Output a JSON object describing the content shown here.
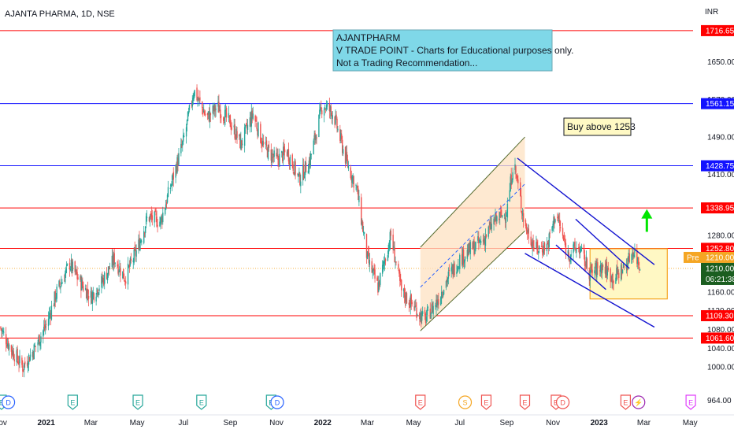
{
  "header": {
    "symbol_title": "AJANTA PHARMA, 1D, NSE",
    "currency": "INR"
  },
  "annotation": {
    "lines": [
      "AJANTPHARM",
      "V TRADE POINT - Charts for Educational purposes only.",
      "Not a Trading Recommendation..."
    ],
    "background": "#7fd8e8"
  },
  "buy_note": "Buy above 1253",
  "colors": {
    "up_candle": "#26a69a",
    "down_candle": "#ef5350",
    "red_level": "#ff0000",
    "blue_level": "#1212ff",
    "channel_fill": "#fde2c2",
    "consolidation_fill": "#fff8c4",
    "consolidation_border": "#f5a623",
    "arrow_green": "#00e600",
    "last_price": "#1b5e20"
  },
  "chart_data": {
    "type": "candlestick",
    "title": "AJANTA PHARMA, 1D, NSE",
    "y_unit": "INR",
    "ylim": [
      960,
      1740
    ],
    "x_range": [
      "2020-11-01",
      "2023-05-05"
    ],
    "y_ticks": [
      1000,
      1040,
      1080,
      1120,
      1160,
      1280,
      1410,
      1490,
      1570,
      1650
    ],
    "y_tick_labels": [
      "1000.00",
      "1040.00",
      "1080.00",
      "1120.00",
      "1160.00",
      "1280.00",
      "1410.00",
      "1490.00",
      "1570.00",
      "1650.00"
    ],
    "x_ticks": [
      {
        "date": "2020-11-01",
        "label": "Nov"
      },
      {
        "date": "2021-01-01",
        "label": "2021"
      },
      {
        "date": "2021-03-01",
        "label": "Mar"
      },
      {
        "date": "2021-05-01",
        "label": "May"
      },
      {
        "date": "2021-07-01",
        "label": "Jul"
      },
      {
        "date": "2021-09-01",
        "label": "Sep"
      },
      {
        "date": "2021-11-01",
        "label": "Nov"
      },
      {
        "date": "2022-01-01",
        "label": "2022"
      },
      {
        "date": "2022-03-01",
        "label": "Mar"
      },
      {
        "date": "2022-05-01",
        "label": "May"
      },
      {
        "date": "2022-07-01",
        "label": "Jul"
      },
      {
        "date": "2022-09-01",
        "label": "Sep"
      },
      {
        "date": "2022-11-01",
        "label": "Nov"
      },
      {
        "date": "2023-01-01",
        "label": "2023"
      },
      {
        "date": "2023-03-01",
        "label": "Mar"
      },
      {
        "date": "2023-05-01",
        "label": "May"
      }
    ],
    "horizontal_levels": [
      {
        "value": 1716.65,
        "label": "1716.65",
        "color": "red"
      },
      {
        "value": 1561.15,
        "label": "1561.15",
        "color": "blue"
      },
      {
        "value": 1428.75,
        "label": "1428.75",
        "color": "blue"
      },
      {
        "value": 1338.95,
        "label": "1338.95",
        "color": "red"
      },
      {
        "value": 1252.8,
        "label": "1252.80",
        "color": "red"
      },
      {
        "value": 1109.3,
        "label": "1109.30",
        "color": "red"
      },
      {
        "value": 1061.6,
        "label": "1061.60",
        "color": "red"
      }
    ],
    "last_price": {
      "value": 1210.0,
      "label": "1210.00",
      "countdown": "06:21:38"
    },
    "pre_market": {
      "tag": "Pre",
      "value": 1210.0,
      "label": "1210.00"
    },
    "bottom_price_label": "964.00",
    "price_path": [
      [
        "2020-11-01",
        1085
      ],
      [
        "2020-11-15",
        1040
      ],
      [
        "2020-12-01",
        1000
      ],
      [
        "2020-12-15",
        1035
      ],
      [
        "2021-01-01",
        1090
      ],
      [
        "2021-01-15",
        1160
      ],
      [
        "2021-02-01",
        1220
      ],
      [
        "2021-02-15",
        1180
      ],
      [
        "2021-03-01",
        1150
      ],
      [
        "2021-03-15",
        1180
      ],
      [
        "2021-04-01",
        1230
      ],
      [
        "2021-04-15",
        1190
      ],
      [
        "2021-05-01",
        1250
      ],
      [
        "2021-05-15",
        1320
      ],
      [
        "2021-06-01",
        1310
      ],
      [
        "2021-06-15",
        1390
      ],
      [
        "2021-07-01",
        1480
      ],
      [
        "2021-07-15",
        1590
      ],
      [
        "2021-08-01",
        1530
      ],
      [
        "2021-08-15",
        1555
      ],
      [
        "2021-09-01",
        1520
      ],
      [
        "2021-09-15",
        1475
      ],
      [
        "2021-10-01",
        1540
      ],
      [
        "2021-10-15",
        1470
      ],
      [
        "2021-11-01",
        1440
      ],
      [
        "2021-11-15",
        1460
      ],
      [
        "2021-12-01",
        1400
      ],
      [
        "2021-12-15",
        1440
      ],
      [
        "2022-01-01",
        1560
      ],
      [
        "2022-01-15",
        1540
      ],
      [
        "2022-02-01",
        1440
      ],
      [
        "2022-02-15",
        1380
      ],
      [
        "2022-03-01",
        1230
      ],
      [
        "2022-03-15",
        1170
      ],
      [
        "2022-04-01",
        1280
      ],
      [
        "2022-04-15",
        1160
      ],
      [
        "2022-05-01",
        1130
      ],
      [
        "2022-05-15",
        1100
      ],
      [
        "2022-06-01",
        1140
      ],
      [
        "2022-06-15",
        1190
      ],
      [
        "2022-07-01",
        1230
      ],
      [
        "2022-07-15",
        1250
      ],
      [
        "2022-08-01",
        1270
      ],
      [
        "2022-08-15",
        1310
      ],
      [
        "2022-09-01",
        1330
      ],
      [
        "2022-09-10",
        1440
      ],
      [
        "2022-09-25",
        1300
      ],
      [
        "2022-10-10",
        1250
      ],
      [
        "2022-10-25",
        1260
      ],
      [
        "2022-11-05",
        1330
      ],
      [
        "2022-11-20",
        1240
      ],
      [
        "2022-12-05",
        1255
      ],
      [
        "2022-12-20",
        1200
      ],
      [
        "2023-01-05",
        1215
      ],
      [
        "2023-01-20",
        1190
      ],
      [
        "2023-02-05",
        1215
      ],
      [
        "2023-02-15",
        1250
      ],
      [
        "2023-02-25",
        1210
      ]
    ],
    "channel_up": {
      "upper": [
        [
          "2022-05-10",
          1255
        ],
        [
          "2022-09-25",
          1490
        ]
      ],
      "lower": [
        [
          "2022-05-10",
          1077
        ],
        [
          "2022-09-25",
          1290
        ]
      ],
      "mid_dashed": [
        [
          "2022-05-10",
          1170
        ],
        [
          "2022-09-25",
          1390
        ]
      ]
    },
    "channel_down": {
      "upper": [
        [
          "2022-09-15",
          1445
        ],
        [
          "2023-03-15",
          1218
        ]
      ],
      "lower": [
        [
          "2022-09-25",
          1242
        ],
        [
          "2023-03-15",
          1085
        ]
      ],
      "inner_upper": [
        [
          "2022-12-01",
          1315
        ],
        [
          "2023-02-10",
          1210
        ]
      ],
      "inner_lower": [
        [
          "2022-11-05",
          1260
        ],
        [
          "2023-01-10",
          1165
        ]
      ]
    },
    "consolidation_box": {
      "x0": "2022-12-20",
      "x1": "2023-04-01",
      "y0": 1145,
      "y1": 1252
    },
    "target_arrow": {
      "date": "2023-03-05",
      "from": 1288,
      "to": 1333
    }
  },
  "event_markers": [
    {
      "date": "2020-11-03",
      "letter": "E",
      "kind": "earnings",
      "color": "#26a69a"
    },
    {
      "date": "2020-11-12",
      "letter": "D",
      "kind": "dividend",
      "color": "#2962ff"
    },
    {
      "date": "2021-02-05",
      "letter": "E",
      "kind": "earnings",
      "color": "#26a69a"
    },
    {
      "date": "2021-05-02",
      "letter": "E",
      "kind": "earnings",
      "color": "#26a69a"
    },
    {
      "date": "2021-07-25",
      "letter": "E",
      "kind": "earnings",
      "color": "#26a69a"
    },
    {
      "date": "2021-10-25",
      "letter": "E",
      "kind": "earnings",
      "color": "#26a69a"
    },
    {
      "date": "2021-11-02",
      "letter": "D",
      "kind": "dividend",
      "color": "#2962ff"
    },
    {
      "date": "2022-05-10",
      "letter": "E",
      "kind": "earnings",
      "color": "#ef5350"
    },
    {
      "date": "2022-07-08",
      "letter": "S",
      "kind": "split",
      "color": "#f5a623"
    },
    {
      "date": "2022-08-05",
      "letter": "E",
      "kind": "earnings",
      "color": "#ef5350"
    },
    {
      "date": "2022-09-25",
      "letter": "E",
      "kind": "earnings",
      "color": "#ef5350"
    },
    {
      "date": "2022-11-05",
      "letter": "E",
      "kind": "earnings",
      "color": "#ef5350"
    },
    {
      "date": "2022-11-14",
      "letter": "D",
      "kind": "dividend",
      "color": "#ef5350"
    },
    {
      "date": "2023-02-05",
      "letter": "E",
      "kind": "earnings",
      "color": "#ef5350"
    },
    {
      "date": "2023-02-22",
      "letter": "⚡",
      "kind": "event",
      "color": "#9c27b0"
    },
    {
      "date": "2023-05-02",
      "letter": "E",
      "kind": "earnings",
      "color": "#e040fb"
    }
  ]
}
